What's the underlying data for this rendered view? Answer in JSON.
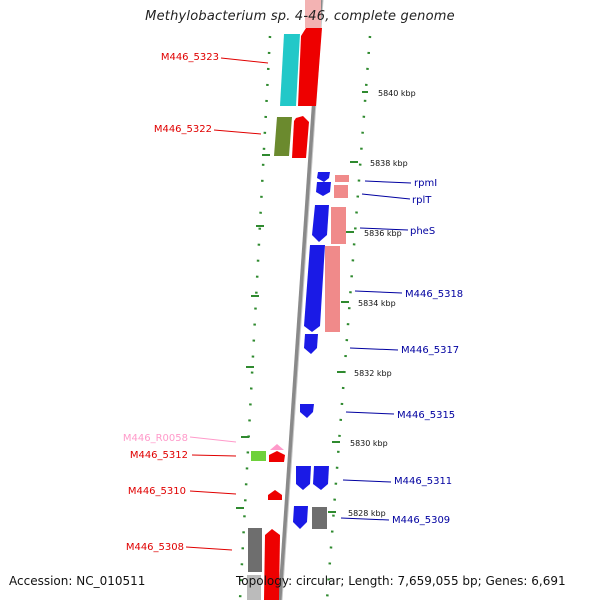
{
  "title": "Methylobacterium sp. 4-46, complete genome",
  "accession": "Accession: NC_010511",
  "summary": "Topology: circular; Length: 7,659,055 bp; Genes: 6,691",
  "colors": {
    "label_left": "#e00000",
    "label_right": "#0000a0",
    "label_rna": "#ff9aca",
    "scale_tick": "#2f8a2f",
    "backbone": "#8a8a8a"
  },
  "scale_labels": [
    "5840 kbp",
    "5838 kbp",
    "5836 kbp",
    "5834 kbp",
    "5832 kbp",
    "5830 kbp",
    "5828 kbp"
  ],
  "left_genes": [
    "M446_5323",
    "M446_5322",
    "M446_R0058",
    "M446_5312",
    "M446_5310",
    "M446_5308"
  ],
  "right_genes": [
    "rpmI",
    "rplT",
    "pheS",
    "M446_5318",
    "M446_5317",
    "M446_5315",
    "M446_5311",
    "M446_5309"
  ]
}
